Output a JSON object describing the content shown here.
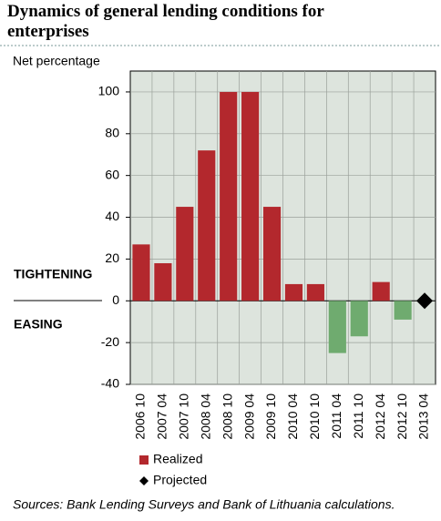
{
  "chart_data": {
    "type": "bar",
    "title": "Dynamics of general lending conditions for enterprises",
    "y_label": "Net percentage",
    "categories": [
      "2006 10",
      "2007 04",
      "2007 10",
      "2008 04",
      "2008 10",
      "2009 04",
      "2009 10",
      "2010 04",
      "2010 10",
      "2011 04",
      "2011 10",
      "2012 04",
      "2012 10",
      "2013 04"
    ],
    "series": [
      {
        "name": "Realized",
        "color": "#b3282d",
        "negative_color": "#6fab6f",
        "values": [
          27,
          18,
          45,
          72,
          100,
          100,
          45,
          8,
          8,
          -25,
          -17,
          9,
          -9,
          null
        ]
      },
      {
        "name": "Projected",
        "color": "#000000",
        "marker": "diamond",
        "values": [
          null,
          null,
          null,
          null,
          null,
          null,
          null,
          null,
          null,
          null,
          null,
          null,
          null,
          0
        ]
      }
    ],
    "ylim": [
      -40,
      110
    ],
    "yticks": [
      -40,
      -20,
      0,
      20,
      40,
      60,
      80,
      100
    ],
    "grid": true,
    "annotations": [
      "TIGHTENING",
      "EASING"
    ],
    "source": "Sources: Bank Lending Surveys and Bank of Lithuania calculations."
  }
}
